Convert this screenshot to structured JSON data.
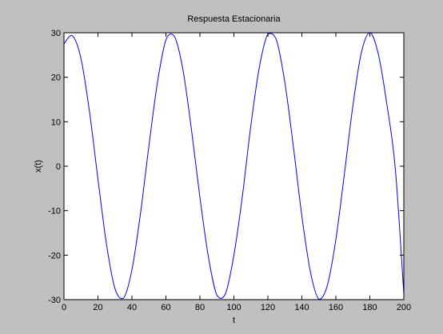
{
  "chart_data": {
    "type": "line",
    "title": "Respuesta Estacionaria",
    "xlabel": "t",
    "ylabel": "x(t)",
    "xlim": [
      0,
      200
    ],
    "ylim": [
      -30,
      30
    ],
    "xticks": [
      0,
      20,
      40,
      60,
      80,
      100,
      120,
      140,
      160,
      180,
      200
    ],
    "yticks": [
      -30,
      -20,
      -10,
      0,
      10,
      20,
      30
    ],
    "grid": false,
    "line_color": "#0000ff",
    "series": [
      {
        "x": [
          0,
          5,
          10,
          15,
          20,
          25,
          30,
          35,
          40,
          45,
          50,
          55,
          60,
          65,
          70,
          75,
          80,
          85,
          90,
          95,
          100,
          105,
          110,
          115,
          120,
          125,
          130,
          135,
          140,
          145,
          150,
          155,
          160,
          165,
          170,
          175,
          180,
          185,
          190,
          195,
          200
        ],
        "y": [
          27.5,
          29.3,
          24.2,
          12.3,
          -2.9,
          -17.5,
          -27.5,
          -29.7,
          -23.3,
          -10.7,
          4.6,
          18.8,
          28.4,
          29.2,
          21.7,
          8.3,
          -7.0,
          -20.4,
          -29.0,
          -28.7,
          -20.0,
          -6.7,
          9.2,
          22.3,
          29.7,
          28.4,
          18.8,
          4.4,
          -11.2,
          -23.7,
          -29.9,
          -26.8,
          -16.5,
          -1.8,
          13.5,
          25.5,
          30.0,
          25.2,
          14.0,
          -0.6,
          -28.7
        ]
      }
    ]
  }
}
